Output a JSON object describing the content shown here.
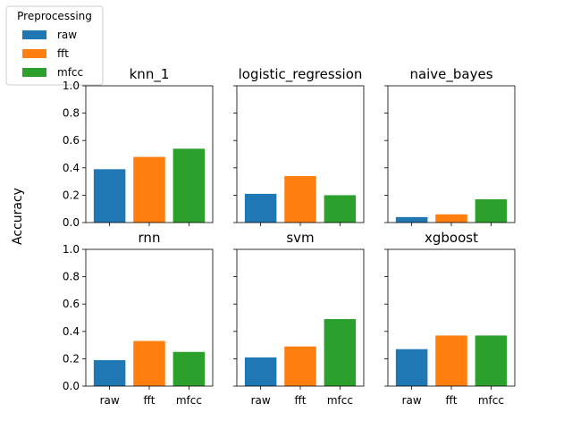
{
  "chart_data": {
    "type": "bar",
    "ylabel": "Accuracy",
    "ylim": [
      0,
      1.0
    ],
    "yticks": [
      "0.0",
      "0.2",
      "0.4",
      "0.6",
      "0.8",
      "1.0"
    ],
    "categories": [
      "raw",
      "fft",
      "mfcc"
    ],
    "legend": {
      "title": "Preprocessing",
      "placement": "top-left",
      "entries": [
        "raw",
        "fft",
        "mfcc"
      ]
    },
    "colors": {
      "raw": "#1f77b4",
      "fft": "#ff7f0e",
      "mfcc": "#2ca02c"
    },
    "subplots": [
      {
        "title": "knn_1",
        "values": [
          0.39,
          0.48,
          0.54
        ]
      },
      {
        "title": "logistic_regression",
        "values": [
          0.21,
          0.34,
          0.2
        ]
      },
      {
        "title": "naive_bayes",
        "values": [
          0.04,
          0.06,
          0.17
        ]
      },
      {
        "title": "rnn",
        "values": [
          0.19,
          0.33,
          0.25
        ]
      },
      {
        "title": "svm",
        "values": [
          0.21,
          0.29,
          0.49
        ]
      },
      {
        "title": "xgboost",
        "values": [
          0.27,
          0.37,
          0.37
        ]
      }
    ]
  }
}
